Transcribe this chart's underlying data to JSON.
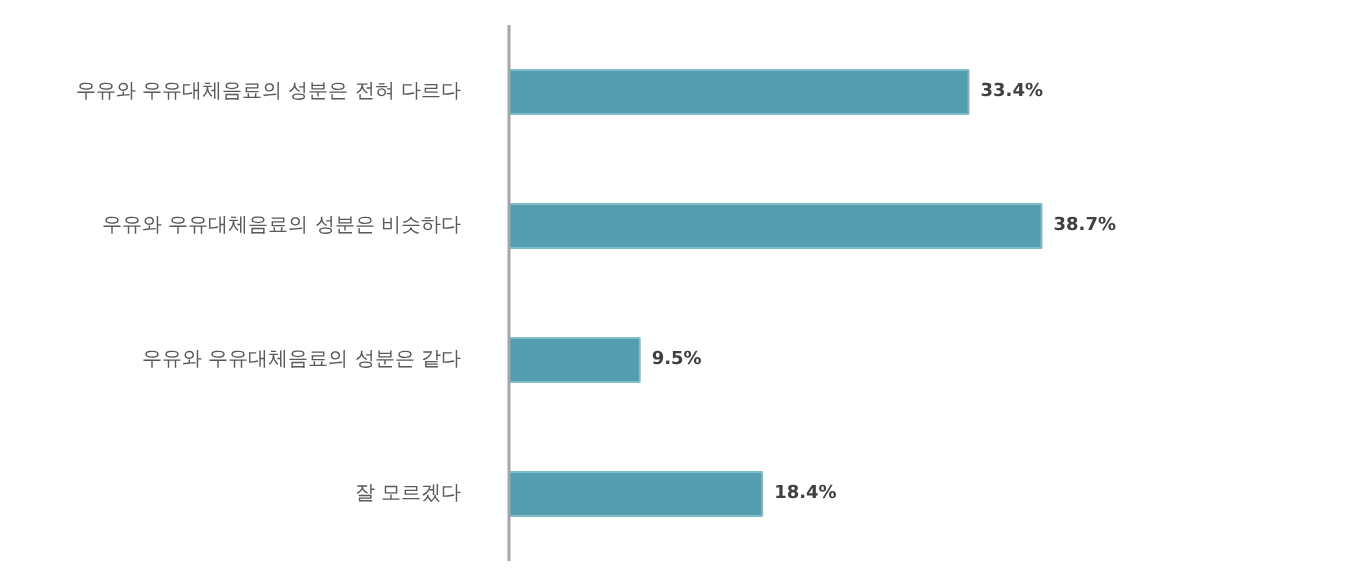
{
  "chart_data": {
    "type": "bar",
    "orientation": "horizontal",
    "categories": [
      "우유와 우유대체음료의 성분은 전혀 다르다",
      "우유와 우유대체음료의 성분은 비슷하다",
      "우유와 우유대체음료의 성분은 같다",
      "잘 모르겠다"
    ],
    "values": [
      33.4,
      38.7,
      9.5,
      18.4
    ],
    "value_labels": [
      "33.4%",
      "38.7%",
      "9.5%",
      "18.4%"
    ],
    "color": "#559db1",
    "grid": false,
    "tick_labels": "y"
  }
}
